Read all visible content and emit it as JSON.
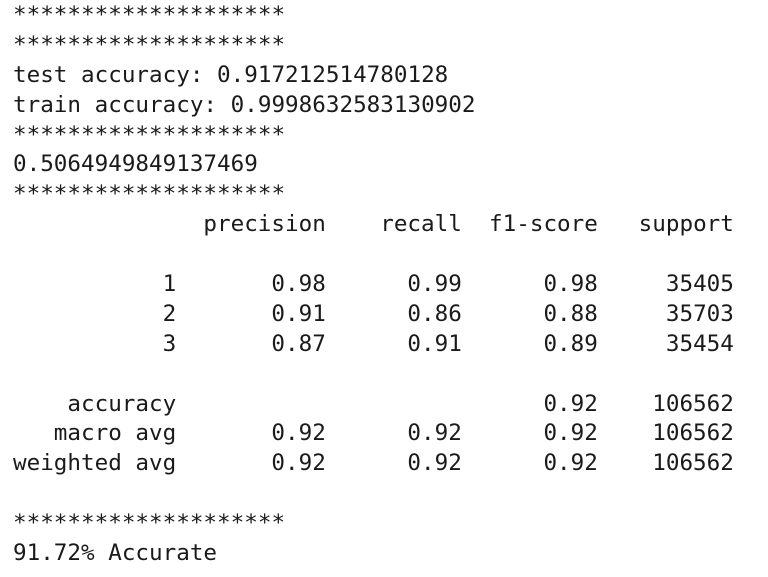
{
  "output": {
    "separator": "********************",
    "test_accuracy": "test accuracy: 0.917212514780128",
    "train_accuracy": "train accuracy: 0.9998632583130902",
    "score": "0.5064949849137469",
    "final": "91.72% Accurate"
  },
  "report": {
    "headers": [
      "precision",
      "recall",
      "f1-score",
      "support"
    ],
    "class_rows": [
      {
        "label": "1",
        "values": [
          "0.98",
          "0.99",
          "0.98",
          "35405"
        ]
      },
      {
        "label": "2",
        "values": [
          "0.91",
          "0.86",
          "0.88",
          "35703"
        ]
      },
      {
        "label": "3",
        "values": [
          "0.87",
          "0.91",
          "0.89",
          "35454"
        ]
      }
    ],
    "summary_rows": [
      {
        "label": "accuracy",
        "values": [
          "",
          "",
          "0.92",
          "106562"
        ]
      },
      {
        "label": "macro avg",
        "values": [
          "0.92",
          "0.92",
          "0.92",
          "106562"
        ]
      },
      {
        "label": "weighted avg",
        "values": [
          "0.92",
          "0.92",
          "0.92",
          "106562"
        ]
      }
    ]
  }
}
